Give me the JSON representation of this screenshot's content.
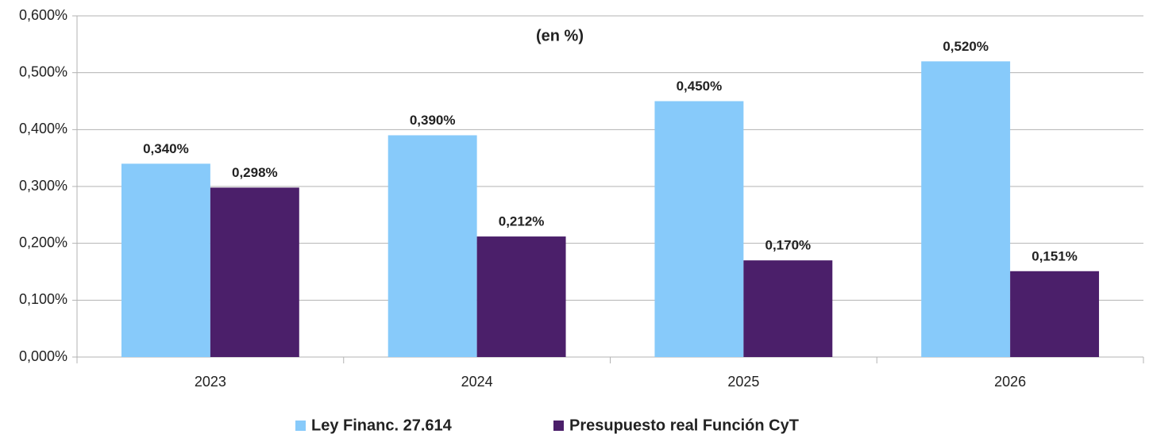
{
  "chart_data": {
    "type": "bar",
    "title": "(en %)",
    "categories": [
      "2023",
      "2024",
      "2025",
      "2026"
    ],
    "series": [
      {
        "name": "Ley Financ. 27.614",
        "color": "#87cafa",
        "values": [
          0.34,
          0.39,
          0.45,
          0.52
        ],
        "value_labels": [
          "0,340%",
          "0,390%",
          "0,450%",
          "0,520%"
        ]
      },
      {
        "name": "Presupuesto real Función CyT",
        "color": "#4b1f6a",
        "values": [
          0.298,
          0.212,
          0.17,
          0.151
        ],
        "value_labels": [
          "0,298%",
          "0,212%",
          "0,170%",
          "0,151%"
        ]
      }
    ],
    "ylim": [
      0,
      0.6
    ],
    "yticks": [
      {
        "value": 0,
        "label": "0,000%"
      },
      {
        "value": 0.1,
        "label": "0,100%"
      },
      {
        "value": 0.2,
        "label": "0,200%"
      },
      {
        "value": 0.3,
        "label": "0,300%"
      },
      {
        "value": 0.4,
        "label": "0,400%"
      },
      {
        "value": 0.5,
        "label": "0,500%"
      },
      {
        "value": 0.6,
        "label": "0,600%"
      }
    ],
    "grid": true,
    "legend": "bottom"
  }
}
